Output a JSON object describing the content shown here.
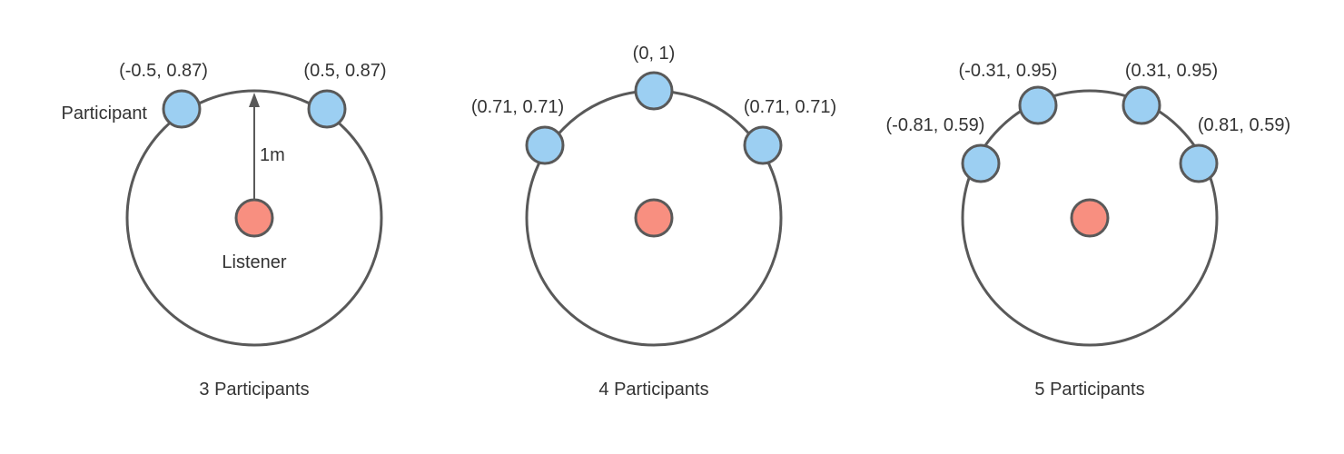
{
  "colors": {
    "circle_stroke": "#595959",
    "participant_fill": "#9ccff2",
    "listener_fill": "#f88f80",
    "text": "#333333"
  },
  "panel1": {
    "caption": "3 Participants",
    "participant_label": "Participant",
    "listener_label": "Listener",
    "radius_label": "1m",
    "coord_left": "(-0.5, 0.87)",
    "coord_right": "(0.5, 0.87)"
  },
  "panel2": {
    "caption": "4 Participants",
    "coord_top": "(0, 1)",
    "coord_left": "(0.71, 0.71)",
    "coord_right": "(0.71, 0.71)"
  },
  "panel3": {
    "caption": "5 Participants",
    "coord_upper_left": "(-0.31, 0.95)",
    "coord_upper_right": "(0.31, 0.95)",
    "coord_lower_left": "(-0.81, 0.59)",
    "coord_lower_right": "(0.81, 0.59)"
  }
}
